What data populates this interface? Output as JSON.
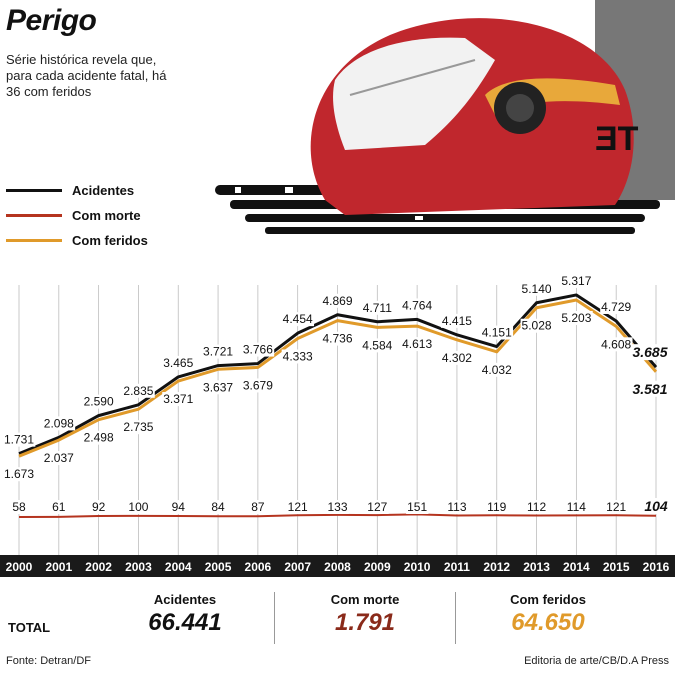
{
  "header": {
    "title": "Perigo",
    "subtitle": "Série histórica revela que, para cada acidente fatal, há 36 com feridos"
  },
  "legend": [
    {
      "label": "Acidentes",
      "color": "#111111"
    },
    {
      "label": "Com morte",
      "color": "#b5341f"
    },
    {
      "label": "Com feridos",
      "color": "#e09a2a"
    }
  ],
  "chart_data": {
    "type": "line",
    "categories": [
      "2000",
      "2001",
      "2002",
      "2003",
      "2004",
      "2005",
      "2006",
      "2007",
      "2008",
      "2009",
      "2010",
      "2011",
      "2012",
      "2013",
      "2014",
      "2015",
      "2016"
    ],
    "series": [
      {
        "name": "Acidentes",
        "color": "#111111",
        "values": [
          1731,
          2098,
          2590,
          2835,
          3465,
          3721,
          3766,
          4454,
          4869,
          4711,
          4764,
          4415,
          4151,
          5140,
          5317,
          4729,
          3685
        ],
        "labels": [
          "1.731",
          "2.098",
          "2.590",
          "2.835",
          "3.465",
          "3.721",
          "3.766",
          "4.454",
          "4.869",
          "4.711",
          "4.764",
          "4.415",
          "4.151",
          "5.140",
          "5.317",
          "4.729",
          "3.685"
        ]
      },
      {
        "name": "Com feridos",
        "color": "#e09a2a",
        "values": [
          1673,
          2037,
          2498,
          2735,
          3371,
          3637,
          3679,
          4333,
          4736,
          4584,
          4613,
          4302,
          4032,
          5028,
          5203,
          4608,
          3581
        ],
        "labels": [
          "1.673",
          "2.037",
          "2.498",
          "2.735",
          "3.371",
          "3.637",
          "3.679",
          "4.333",
          "4.736",
          "4.584",
          "4.613",
          "4.302",
          "4.032",
          "5.028",
          "5.203",
          "4.608",
          "3.581"
        ]
      },
      {
        "name": "Com morte",
        "color": "#b5341f",
        "values": [
          58,
          61,
          92,
          100,
          94,
          84,
          87,
          121,
          133,
          127,
          151,
          113,
          119,
          112,
          114,
          121,
          104
        ],
        "labels": [
          "58",
          "61",
          "92",
          "100",
          "94",
          "84",
          "87",
          "121",
          "133",
          "127",
          "151",
          "113",
          "119",
          "112",
          "114",
          "121",
          "104"
        ]
      }
    ]
  },
  "totals": {
    "label": "TOTAL",
    "accidents": {
      "label": "Acidentes",
      "value": "66.441",
      "color": "#111111"
    },
    "deaths": {
      "label": "Com morte",
      "value": "1.791",
      "color": "#8a2a1a"
    },
    "injured": {
      "label": "Com feridos",
      "value": "64.650",
      "color": "#e09a2a"
    }
  },
  "footer": {
    "source": "Fonte: Detran/DF",
    "credit": "Editoria de arte/CB/D.A Press"
  },
  "illustration": {
    "icon": "helmet-icon",
    "colors": {
      "shell": "#c0272d",
      "stripe": "#e8a83a"
    }
  }
}
